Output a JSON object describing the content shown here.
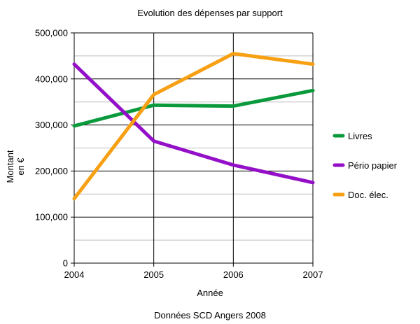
{
  "chart_data": {
    "type": "line",
    "title": "Evolution des dépenses par support",
    "xlabel": "Année",
    "ylabel": [
      "Montant",
      "en €"
    ],
    "caption": "Données SCD Angers 2008",
    "x": [
      "2004",
      "2005",
      "2006",
      "2007"
    ],
    "yticks": [
      "0",
      "100,000",
      "200,000",
      "300,000",
      "400,000",
      "500,000"
    ],
    "ylim": [
      0,
      500000
    ],
    "grid": true,
    "legend": "right",
    "series": [
      {
        "name": "Livres",
        "color": "#0a9a3c",
        "values": [
          298000,
          343000,
          341000,
          375000
        ]
      },
      {
        "name": "Pério papier",
        "color": "#9410c8",
        "values": [
          432000,
          265000,
          213000,
          175000
        ]
      },
      {
        "name": "Doc. élec.",
        "color": "#f7a014",
        "values": [
          140000,
          366000,
          455000,
          432000
        ]
      }
    ]
  }
}
